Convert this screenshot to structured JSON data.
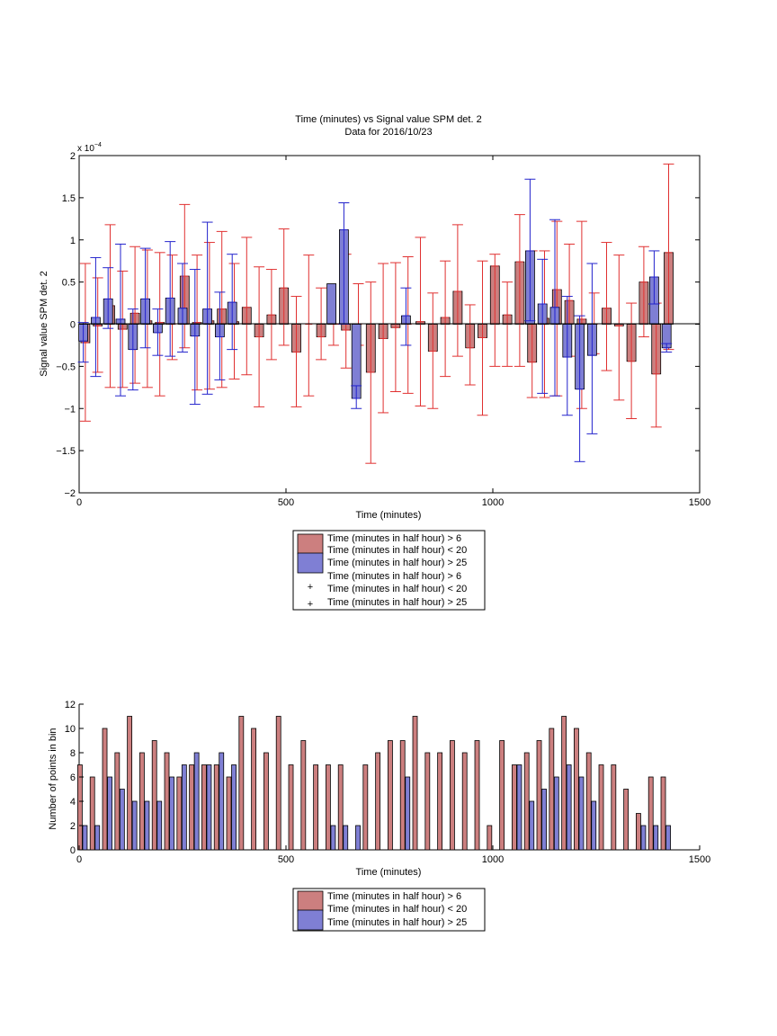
{
  "colors": {
    "red_bar": "#cc7f7f",
    "blue_bar": "#7f7fd4",
    "red_err": "#e03030",
    "blue_err": "#2222cc"
  },
  "chart_data": [
    {
      "type": "bar",
      "title": "Time (minutes) vs Signal value SPM det. 2",
      "subtitle": "Data for 2016/10/23",
      "xlabel": "Time (minutes)",
      "ylabel": "Signal value SPM det. 2",
      "y_exponent": "x 10^-4",
      "y_exponent_base": "x 10",
      "y_exponent_power": "−4",
      "xlim": [
        0,
        1500
      ],
      "ylim": [
        -2,
        2
      ],
      "xticks": [
        "0",
        "500",
        "1000",
        "1500"
      ],
      "yticks": [
        "−2",
        "−1.5",
        "−1",
        "−0.5",
        "0",
        "0.5",
        "1",
        "1.5",
        "2"
      ],
      "legend_position": "below",
      "legend": [
        "Time (minutes in half hour) > 6",
        "Time (minutes in half hour) < 20",
        "Time (minutes in half hour) > 25",
        "Time (minutes in half hour) > 6",
        "Time (minutes in half hour) < 20",
        "Time (minutes in half hour) > 25"
      ],
      "series": [
        {
          "color": "red",
          "x": [
            15,
            45,
            75,
            105,
            135,
            165,
            195,
            225,
            255,
            285,
            315,
            345,
            375,
            405,
            435,
            465,
            495,
            525,
            555,
            585,
            615,
            645,
            675,
            705,
            735,
            765,
            795,
            825,
            855,
            885,
            915,
            945,
            975,
            1005,
            1035,
            1065,
            1095,
            1125,
            1155,
            1185,
            1215,
            1245,
            1275,
            1305,
            1335,
            1365,
            1395,
            1425
          ],
          "values": [
            -0.22,
            -0.02,
            0.22,
            -0.06,
            0.13,
            0.04,
            0.02,
            0.0,
            0.57,
            0.02,
            0.04,
            0.18,
            0.03,
            0.2,
            -0.15,
            0.11,
            0.43,
            -0.33,
            0.0,
            -0.15,
            0.0,
            -0.07,
            0.0,
            -0.57,
            -0.17,
            -0.04,
            0.0,
            0.03,
            -0.32,
            0.08,
            0.39,
            -0.28,
            -0.16,
            0.69,
            0.11,
            0.74,
            -0.45,
            0.07,
            0.41,
            0.28,
            0.06,
            0.0,
            0.19,
            -0.02,
            -0.44,
            0.5,
            -0.59,
            0.85
          ],
          "err_low": [
            -1.15,
            -0.57,
            -0.75,
            -0.75,
            -0.7,
            -0.75,
            -0.85,
            -0.42,
            -0.28,
            -0.78,
            -0.77,
            -0.75,
            -0.65,
            -0.6,
            -0.98,
            -0.42,
            -0.25,
            -0.98,
            -0.85,
            -0.42,
            -0.25,
            -0.52,
            -0.25,
            -1.65,
            -1.05,
            -0.8,
            -0.82,
            -0.97,
            -1.0,
            -0.62,
            -0.38,
            -0.72,
            -1.08,
            -0.5,
            -0.5,
            -0.5,
            -0.87,
            -0.87,
            -0.85,
            -0.38,
            -1.0,
            -0.35,
            -0.55,
            -0.9,
            -1.12,
            -0.15,
            -1.22,
            -0.3
          ],
          "err_high": [
            0.72,
            0.55,
            1.18,
            0.63,
            0.92,
            0.88,
            0.85,
            0.82,
            1.42,
            0.82,
            0.97,
            1.1,
            0.72,
            1.03,
            0.68,
            0.65,
            1.13,
            0.33,
            0.82,
            0.43,
            0.0,
            0.83,
            0.48,
            0.5,
            0.72,
            0.73,
            0.8,
            1.03,
            0.37,
            0.75,
            1.18,
            0.23,
            0.75,
            0.83,
            0.5,
            1.3,
            0.87,
            0.87,
            1.22,
            0.95,
            1.22,
            0.37,
            0.97,
            0.82,
            0.25,
            0.92,
            0.25,
            1.9
          ]
        },
        {
          "color": "blue",
          "x": [
            10,
            40,
            70,
            100,
            130,
            160,
            190,
            220,
            250,
            280,
            310,
            340,
            370,
            400,
            430,
            460,
            490,
            520,
            550,
            580,
            610,
            640,
            670,
            700,
            730,
            760,
            790,
            820,
            850,
            880,
            910,
            940,
            970,
            1000,
            1030,
            1060,
            1090,
            1120,
            1150,
            1180,
            1210,
            1240,
            1270,
            1300,
            1330,
            1360,
            1390,
            1420
          ],
          "values": [
            -0.2,
            0.08,
            0.3,
            0.06,
            -0.3,
            0.3,
            -0.1,
            0.31,
            0.19,
            -0.14,
            0.18,
            -0.15,
            0.26,
            0.0,
            0.0,
            0.0,
            0.0,
            0.0,
            0.0,
            0.0,
            0.48,
            1.12,
            -0.88,
            0.0,
            0.0,
            0.0,
            0.1,
            0.0,
            0.0,
            0.0,
            0.0,
            0.0,
            0.0,
            0.0,
            0.0,
            0.0,
            0.87,
            0.24,
            0.2,
            -0.39,
            -0.77,
            -0.37,
            0.0,
            0.0,
            0.0,
            0.0,
            0.56,
            -0.28
          ],
          "err_low": [
            -0.45,
            -0.62,
            -0.05,
            -0.85,
            -0.78,
            -0.28,
            -0.37,
            -0.38,
            -0.33,
            -0.95,
            -0.83,
            -0.66,
            -0.3,
            0.0,
            0.0,
            0.0,
            0.0,
            0.0,
            0.0,
            0.0,
            0.0,
            0.0,
            -1.0,
            0.0,
            0.0,
            0.0,
            -0.25,
            0.0,
            0.0,
            0.0,
            0.0,
            0.0,
            0.0,
            0.0,
            0.0,
            0.0,
            0.04,
            -0.82,
            -0.85,
            -1.08,
            -1.63,
            -1.3,
            0.0,
            0.0,
            0.0,
            0.0,
            0.24,
            -0.33
          ],
          "err_high": [
            0.02,
            0.79,
            0.67,
            0.95,
            0.18,
            0.9,
            0.18,
            0.98,
            0.72,
            0.65,
            1.21,
            0.38,
            0.83,
            0.0,
            0.0,
            0.0,
            0.0,
            0.0,
            0.0,
            0.0,
            0.0,
            1.44,
            -0.73,
            0.0,
            0.0,
            0.0,
            0.43,
            0.0,
            0.0,
            0.0,
            0.0,
            0.0,
            0.0,
            0.0,
            0.0,
            0.0,
            1.72,
            0.77,
            1.24,
            0.33,
            0.1,
            0.72,
            0.0,
            0.0,
            0.0,
            0.0,
            0.87,
            -0.23
          ]
        }
      ]
    },
    {
      "type": "bar",
      "xlabel": "Time (minutes)",
      "ylabel": "Number of points in bin",
      "xlim": [
        0,
        1500
      ],
      "ylim": [
        0,
        12
      ],
      "xticks": [
        "0",
        "500",
        "1000",
        "1500"
      ],
      "yticks": [
        "0",
        "2",
        "4",
        "6",
        "8",
        "10",
        "12"
      ],
      "legend_position": "below",
      "legend": [
        "Time (minutes in half hour) > 6",
        "Time (minutes in half hour) < 20",
        "Time (minutes in half hour) > 25"
      ],
      "series": [
        {
          "color": "red",
          "x": [
            2,
            32,
            62,
            92,
            122,
            152,
            182,
            212,
            242,
            272,
            302,
            332,
            362,
            392,
            422,
            452,
            482,
            512,
            542,
            572,
            602,
            632,
            662,
            692,
            722,
            752,
            782,
            812,
            842,
            872,
            902,
            932,
            962,
            992,
            1022,
            1052,
            1082,
            1112,
            1142,
            1172,
            1202,
            1232,
            1262,
            1292,
            1322,
            1352,
            1382,
            1412
          ],
          "values": [
            7,
            6,
            10,
            8,
            11,
            8,
            9,
            8,
            6,
            7,
            7,
            7,
            6,
            11,
            10,
            8,
            11,
            7,
            9,
            7,
            7,
            7,
            0,
            7,
            8,
            9,
            9,
            11,
            8,
            8,
            9,
            8,
            9,
            2,
            9,
            7,
            8,
            9,
            10,
            11,
            10,
            8,
            7,
            7,
            5,
            3,
            6,
            6
          ]
        },
        {
          "color": "blue",
          "x": [
            14,
            44,
            74,
            104,
            134,
            164,
            194,
            224,
            254,
            284,
            314,
            344,
            374,
            404,
            434,
            464,
            494,
            524,
            554,
            584,
            614,
            644,
            674,
            704,
            734,
            764,
            794,
            824,
            854,
            884,
            914,
            944,
            974,
            1004,
            1034,
            1064,
            1094,
            1124,
            1154,
            1184,
            1214,
            1244,
            1274,
            1304,
            1334,
            1364,
            1394,
            1424
          ],
          "values": [
            2,
            2,
            6,
            5,
            4,
            4,
            4,
            6,
            7,
            8,
            7,
            8,
            7,
            0,
            0,
            0,
            0,
            0,
            0,
            0,
            2,
            2,
            2,
            0,
            0,
            0,
            6,
            0,
            0,
            0,
            0,
            0,
            0,
            0,
            0,
            7,
            4,
            5,
            6,
            7,
            6,
            4,
            0,
            0,
            0,
            2,
            2,
            2
          ]
        }
      ]
    }
  ]
}
